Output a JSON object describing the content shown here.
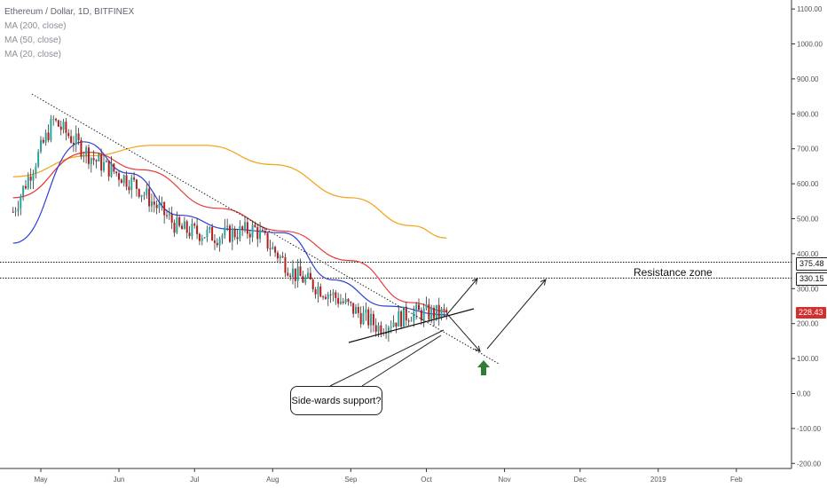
{
  "header": {
    "symbol": "Ethereum / Dollar, 1D, BITFINEX",
    "indicators": [
      "MA (200, close)",
      "MA (50, close)",
      "MA (20, close)"
    ]
  },
  "annotations": {
    "callout": "Side-wards support?",
    "resistance_label": "Resistance zone"
  },
  "price_badges": {
    "upper": "375.48",
    "lower": "330.15",
    "current": "228.43"
  },
  "colors": {
    "bull": "#26a69a",
    "bear": "#b71c1c",
    "ma200": "#f5a623",
    "ma50": "#e53935",
    "ma20": "#2f3fd8",
    "current_badge": "#d32f2f",
    "up_arrow": "#2e7d32"
  },
  "chart_data": {
    "type": "candlestick",
    "title": "Ethereum / Dollar, 1D, BITFINEX",
    "x_ticks": [
      "May",
      "Jun",
      "Jul",
      "Aug",
      "Sep",
      "Oct",
      "Nov",
      "Dec",
      "2019",
      "Feb"
    ],
    "y_ticks": [
      "1100.00",
      "1000.00",
      "900.00",
      "800.00",
      "700.00",
      "600.00",
      "500.00",
      "400.00",
      "300.00",
      "200.00",
      "100.00",
      "0.00",
      "-100.00",
      "-200.00"
    ],
    "ylim": [
      -200,
      1100
    ],
    "close_approx": [
      {
        "date": "2018-04-20",
        "price": 520
      },
      {
        "date": "2018-05-06",
        "price": 780
      },
      {
        "date": "2018-05-22",
        "price": 670
      },
      {
        "date": "2018-06-07",
        "price": 600
      },
      {
        "date": "2018-06-25",
        "price": 470
      },
      {
        "date": "2018-07-10",
        "price": 450
      },
      {
        "date": "2018-07-25",
        "price": 470
      },
      {
        "date": "2018-08-10",
        "price": 340
      },
      {
        "date": "2018-08-25",
        "price": 280
      },
      {
        "date": "2018-09-12",
        "price": 190
      },
      {
        "date": "2018-09-25",
        "price": 230
      },
      {
        "date": "2018-10-09",
        "price": 228
      }
    ],
    "ma200_approx": [
      {
        "date": "2018-04-20",
        "price": 620
      },
      {
        "date": "2018-05-20",
        "price": 680
      },
      {
        "date": "2018-06-15",
        "price": 710
      },
      {
        "date": "2018-07-05",
        "price": 710
      },
      {
        "date": "2018-08-01",
        "price": 655
      },
      {
        "date": "2018-09-01",
        "price": 560
      },
      {
        "date": "2018-09-25",
        "price": 480
      },
      {
        "date": "2018-10-09",
        "price": 445
      }
    ],
    "ma50_approx": [
      {
        "date": "2018-04-20",
        "price": 560
      },
      {
        "date": "2018-05-20",
        "price": 690
      },
      {
        "date": "2018-06-10",
        "price": 640
      },
      {
        "date": "2018-07-10",
        "price": 530
      },
      {
        "date": "2018-08-05",
        "price": 465
      },
      {
        "date": "2018-09-01",
        "price": 380
      },
      {
        "date": "2018-09-25",
        "price": 260
      },
      {
        "date": "2018-10-09",
        "price": 235
      }
    ],
    "ma20_approx": [
      {
        "date": "2018-04-20",
        "price": 430
      },
      {
        "date": "2018-05-18",
        "price": 720
      },
      {
        "date": "2018-06-05",
        "price": 630
      },
      {
        "date": "2018-06-25",
        "price": 510
      },
      {
        "date": "2018-07-15",
        "price": 470
      },
      {
        "date": "2018-08-05",
        "price": 460
      },
      {
        "date": "2018-08-25",
        "price": 325
      },
      {
        "date": "2018-09-15",
        "price": 250
      },
      {
        "date": "2018-10-09",
        "price": 225
      }
    ],
    "horizontal_levels": [
      375.48,
      330.15
    ]
  }
}
